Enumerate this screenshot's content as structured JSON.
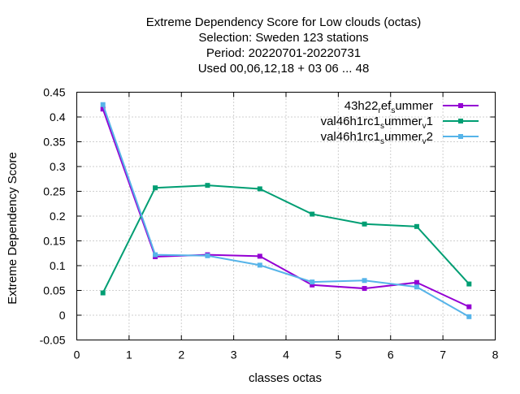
{
  "chart_data": {
    "type": "line",
    "title_lines": [
      "Extreme Dependency Score  for Low clouds (octas)",
      "Selection: Sweden    123 stations",
      "Period: 20220701-20220731",
      "Used  00,06,12,18  + 03 06 ... 48"
    ],
    "xlabel": "classes octas",
    "ylabel": "Extreme Dependency Score",
    "xlim": [
      0,
      8
    ],
    "ylim": [
      -0.05,
      0.45
    ],
    "xticks": [
      "0",
      "1",
      "2",
      "3",
      "4",
      "5",
      "6",
      "7",
      "8"
    ],
    "yticks": [
      "-0.05",
      "0",
      "0.05",
      "0.1",
      "0.15",
      "0.2",
      "0.25",
      "0.3",
      "0.35",
      "0.4",
      "0.45"
    ],
    "grid": true,
    "legend_position": "top-right",
    "x": [
      0.5,
      1.5,
      2.5,
      3.5,
      4.5,
      5.5,
      6.5,
      7.5
    ],
    "series": [
      {
        "name": "43h22_ref_summer",
        "legend_parts": [
          "43h22",
          "r",
          "ef",
          "s",
          "ummer",
          "",
          ""
        ],
        "color": "#9400d3",
        "values": [
          0.416,
          0.118,
          0.122,
          0.119,
          0.061,
          0.054,
          0.066,
          0.017
        ]
      },
      {
        "name": "val46h1rc1_summer_v1",
        "legend_parts": [
          "val46h1rc1",
          "s",
          "ummer",
          "v",
          "1"
        ],
        "color": "#009e73",
        "values": [
          0.045,
          0.257,
          0.262,
          0.255,
          0.204,
          0.184,
          0.179,
          0.063
        ]
      },
      {
        "name": "val46h1rc1_summer_v2",
        "legend_parts": [
          "val46h1rc1",
          "s",
          "ummer",
          "v",
          "2"
        ],
        "color": "#56b4e9",
        "values": [
          0.425,
          0.122,
          0.12,
          0.101,
          0.067,
          0.07,
          0.057,
          -0.003
        ]
      }
    ]
  }
}
